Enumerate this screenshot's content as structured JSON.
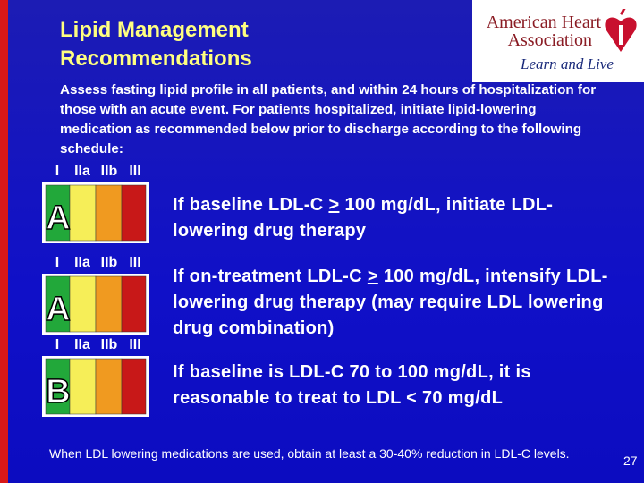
{
  "header": {
    "title_lines": [
      "Lipid Management",
      "Recommendations"
    ]
  },
  "logo": {
    "line1": "American Heart",
    "line2": "Association",
    "tagline": "Learn and Live"
  },
  "intro": "Assess fasting lipid profile in all patients, and within 24 hours of hospitalization for those with an acute event. For patients hospitalized, initiate lipid-lowering medication as recommended below prior to discharge according to the following schedule:",
  "recommendations": [
    {
      "classes": [
        "I",
        "IIa",
        "IIb",
        "III"
      ],
      "level": "A",
      "text_before": "If baseline LDL-C",
      "symbol": ">",
      "text_after": "100 mg/dL, initiate LDL-lowering drug therapy"
    },
    {
      "classes": [
        "I",
        "IIa",
        "IIb",
        "III"
      ],
      "level": "A",
      "text_before": "If on-treatment LDL-C",
      "symbol": ">",
      "text_after": "100 mg/dL, intensify LDL-lowering drug therapy (may require LDL lowering drug combination)"
    },
    {
      "classes": [
        "I",
        "IIa",
        "IIb",
        "III"
      ],
      "level": "B",
      "text_before": "If baseline is LDL-C 70 to 100 mg/dL, it is reasonable to treat to LDL < 70 mg/dL"
    }
  ],
  "footnote": "When LDL lowering medications are used, obtain at least a 30-40% reduction in LDL-C levels.",
  "page_number": "27"
}
